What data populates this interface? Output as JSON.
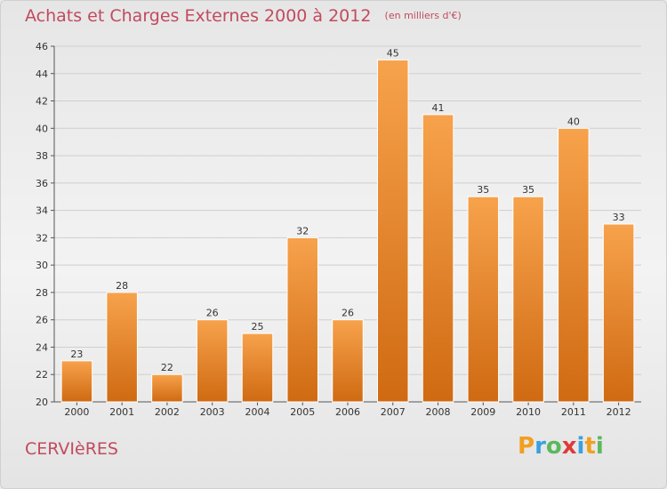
{
  "title": {
    "main": "Achats et Charges Externes 2000 à 2012",
    "unit": "(en milliers d'€)"
  },
  "commune": "CERVIèRES",
  "logo": {
    "text": "Proxiti",
    "letters": [
      {
        "ch": "P",
        "color": "#f0a020"
      },
      {
        "ch": "r",
        "color": "#3aa0e0"
      },
      {
        "ch": "o",
        "color": "#5cb85c"
      },
      {
        "ch": "x",
        "color": "#e03a3a"
      },
      {
        "ch": "i",
        "color": "#3aa0e0"
      },
      {
        "ch": "t",
        "color": "#f0a020"
      },
      {
        "ch": "i",
        "color": "#5cb85c"
      }
    ]
  },
  "colors": {
    "title": "#c24a5e",
    "bar_top": "#f7a24c",
    "bar_bottom": "#cf6a12",
    "grid": "#cfcfcf",
    "axis": "#555555"
  },
  "chart_data": {
    "type": "bar",
    "categories": [
      "2000",
      "2001",
      "2002",
      "2003",
      "2004",
      "2005",
      "2006",
      "2007",
      "2008",
      "2009",
      "2010",
      "2011",
      "2012"
    ],
    "values": [
      23,
      28,
      22,
      26,
      25,
      32,
      26,
      45,
      41,
      35,
      35,
      40,
      33
    ],
    "ylim": [
      20,
      46
    ],
    "yticks": [
      20,
      22,
      24,
      26,
      28,
      30,
      32,
      34,
      36,
      38,
      40,
      42,
      44,
      46
    ],
    "grid": true
  }
}
